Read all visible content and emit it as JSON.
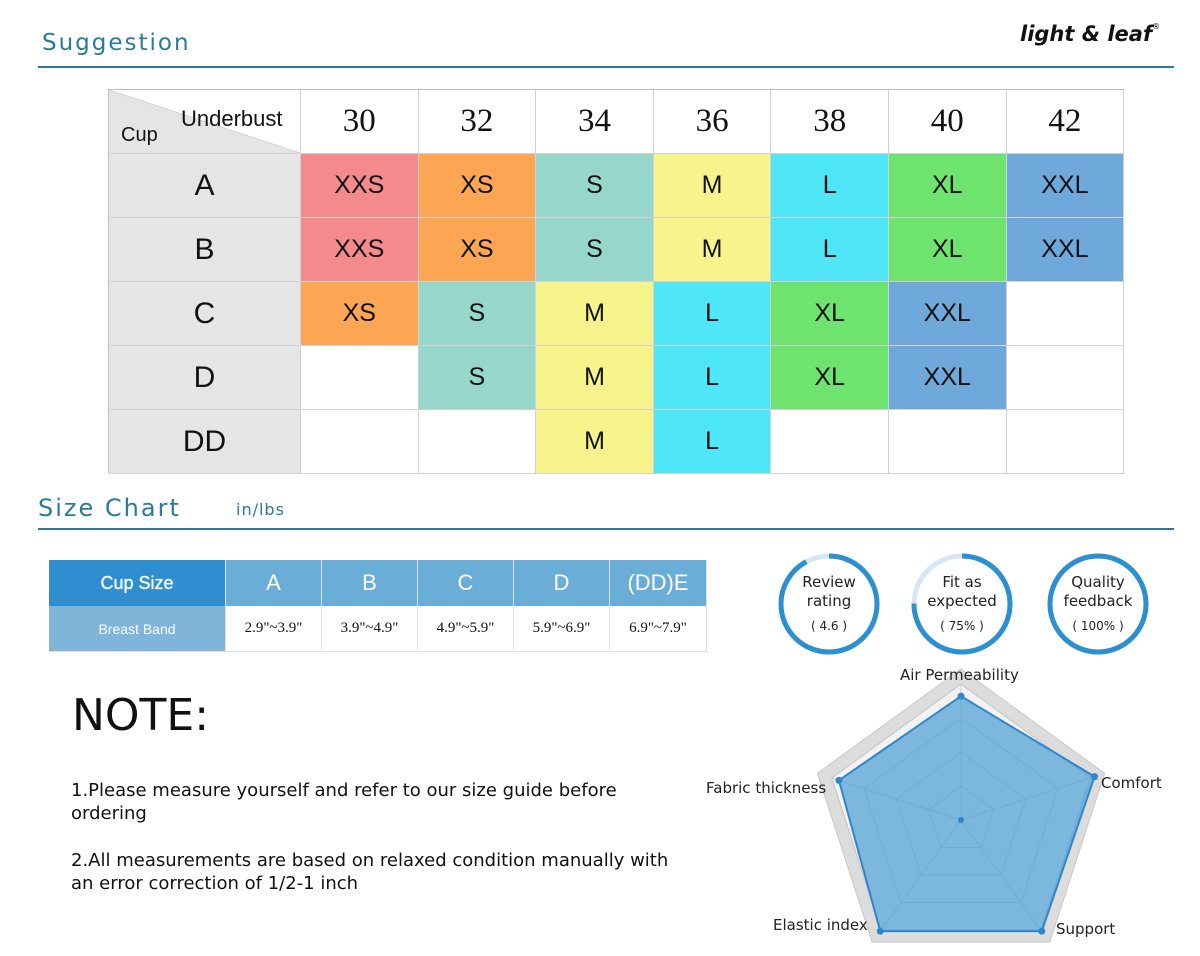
{
  "brand": {
    "name": "light & leaf",
    "mark": "®"
  },
  "suggestion": {
    "title": "Suggestion",
    "corner_underbust": "Underbust",
    "corner_cup": "Cup",
    "bands": [
      "30",
      "32",
      "34",
      "36",
      "38",
      "40",
      "42"
    ],
    "cups": [
      "A",
      "B",
      "C",
      "D",
      "DD"
    ],
    "rows": [
      [
        "XXS",
        "XS",
        "S",
        "M",
        "L",
        "XL",
        "XXL"
      ],
      [
        "XXS",
        "XS",
        "S",
        "M",
        "L",
        "XL",
        "XXL"
      ],
      [
        "XS",
        "S",
        "M",
        "L",
        "XL",
        "XXL",
        ""
      ],
      [
        "",
        "S",
        "M",
        "L",
        "XL",
        "XXL",
        ""
      ],
      [
        "",
        "",
        "M",
        "L",
        "",
        "",
        ""
      ]
    ],
    "size_colors": {
      "XXS": "#f58a8d",
      "XS": "#fca653",
      "S": "#97d6cb",
      "M": "#f7f48c",
      "L": "#4fe7f7",
      "XL": "#6ee46f",
      "XXL": "#6fa9dc"
    }
  },
  "size_chart": {
    "title": "Size Chart",
    "unit": "in/lbs",
    "header": [
      "Cup Size",
      "A",
      "B",
      "C",
      "D",
      "(DD)E"
    ],
    "row": [
      "Breast Band",
      "2.9\"~3.9\"",
      "3.9\"~4.9\"",
      "4.9\"~5.9\"",
      "5.9\"~6.9\"",
      "6.9\"~7.9\""
    ]
  },
  "ratings": [
    {
      "label1": "Review",
      "label2": "rating",
      "value": "( 4.6 )",
      "fraction": 0.92
    },
    {
      "label1": "Fit as",
      "label2": "expected",
      "value": "( 75% )",
      "fraction": 0.75
    },
    {
      "label1": "Quality",
      "label2": "feedback",
      "value": "( 100% )",
      "fraction": 1.0
    }
  ],
  "note": {
    "title": "NOTE:",
    "items": [
      "1.Please measure yourself and refer to our size guide before ordering",
      "2.All measurements are based on relaxed condition manually with an error correction of 1/2-1 inch"
    ]
  },
  "radar": {
    "axes": [
      "Air Permeability",
      "Comfort",
      "Support",
      "Elastic index",
      "Fabric thickness"
    ],
    "values": [
      0.82,
      0.93,
      0.91,
      0.91,
      0.85
    ],
    "fill_color": "#4e9fd6",
    "outer_color": "#dcdcdc"
  }
}
